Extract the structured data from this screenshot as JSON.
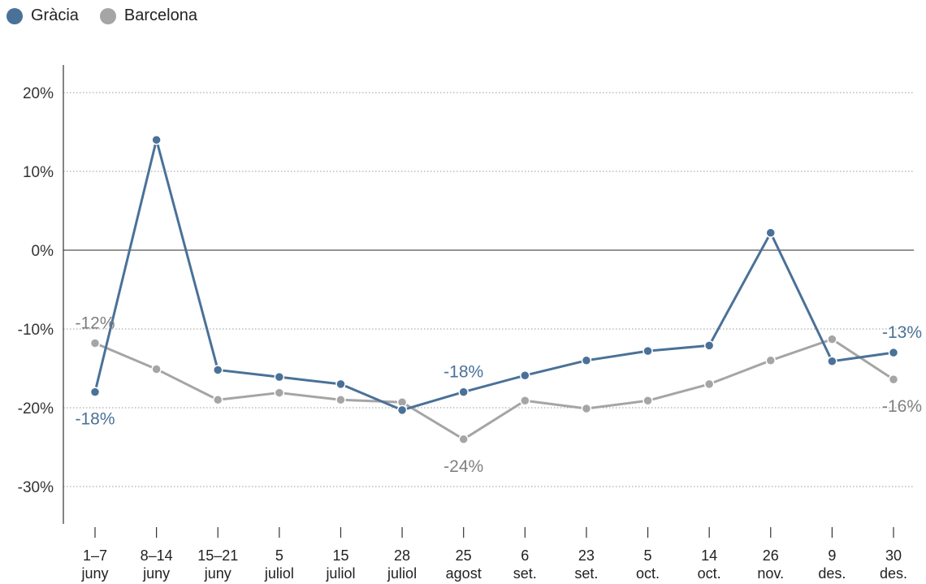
{
  "legend": {
    "items": [
      {
        "label": "Gràcia",
        "color": "#4a7198"
      },
      {
        "label": "Barcelona",
        "color": "#a5a5a5"
      }
    ]
  },
  "chart_data": {
    "type": "line",
    "categories": [
      [
        "1–7",
        "juny"
      ],
      [
        "8–14",
        "juny"
      ],
      [
        "15–21",
        "juny"
      ],
      [
        "5",
        "juliol"
      ],
      [
        "15",
        "juliol"
      ],
      [
        "28",
        "juliol"
      ],
      [
        "25",
        "agost"
      ],
      [
        "6",
        "set."
      ],
      [
        "23",
        "set."
      ],
      [
        "5",
        "oct."
      ],
      [
        "14",
        "oct."
      ],
      [
        "26",
        "nov."
      ],
      [
        "9",
        "des."
      ],
      [
        "30",
        "des."
      ]
    ],
    "series": [
      {
        "name": "Gràcia",
        "color": "#4a7198",
        "values": [
          -18,
          14,
          -15.2,
          -16.1,
          -17,
          -20.3,
          -18,
          -15.9,
          -14,
          -12.8,
          -12.1,
          2.2,
          -14.1,
          -13
        ]
      },
      {
        "name": "Barcelona",
        "color": "#a5a5a5",
        "values": [
          -11.8,
          -15.1,
          -19,
          -18.1,
          -19,
          -19.3,
          -24,
          -19.1,
          -20.1,
          -19.1,
          -17,
          -14,
          -11.3,
          -16.4
        ]
      }
    ],
    "ylim": [
      -35,
      20
    ],
    "yticks": [
      -30,
      -20,
      -10,
      0,
      10,
      20
    ],
    "ytick_labels": [
      "-30%",
      "-20%",
      "-10%",
      "0%",
      "10%",
      "20%"
    ],
    "grid": true,
    "legend_position": "top-left",
    "annotations": [
      {
        "series": 0,
        "index": 0,
        "text": "-18%",
        "pos": "below"
      },
      {
        "series": 0,
        "index": 6,
        "text": "-18%",
        "pos": "above"
      },
      {
        "series": 0,
        "index": 13,
        "text": "-13%",
        "pos": "above"
      },
      {
        "series": 1,
        "index": 0,
        "text": "-12%",
        "pos": "above"
      },
      {
        "series": 1,
        "index": 6,
        "text": "-24%",
        "pos": "below"
      },
      {
        "series": 1,
        "index": 13,
        "text": "-16%",
        "pos": "below"
      }
    ]
  }
}
